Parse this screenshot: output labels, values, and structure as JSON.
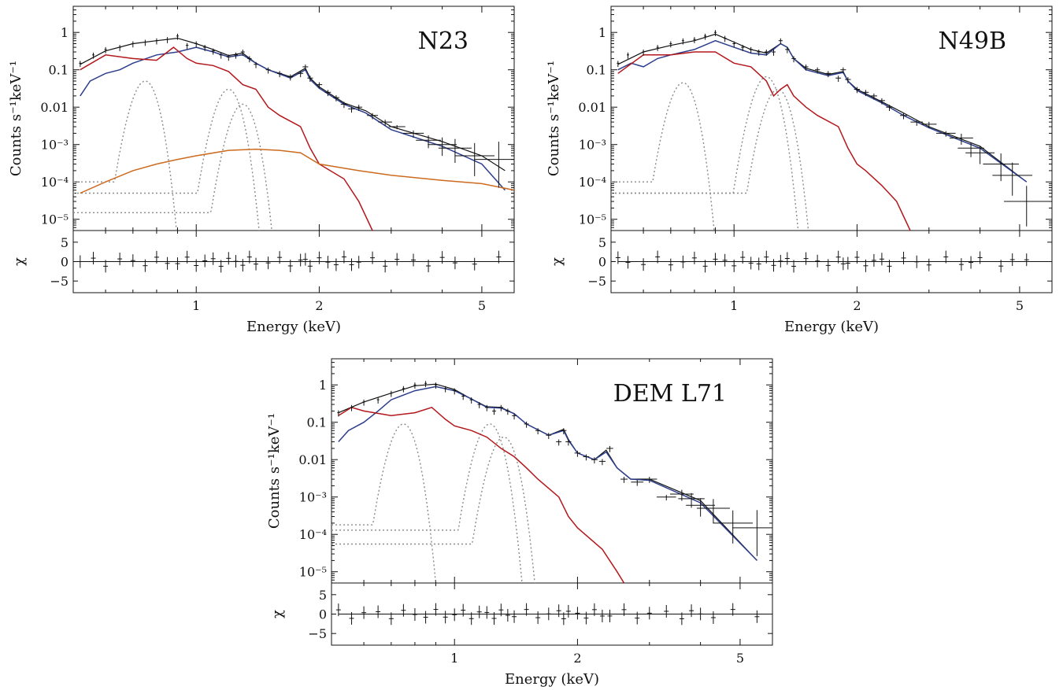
{
  "colors": {
    "data": "#111111",
    "total_model": "#111111",
    "blue_component": "#2c3e8c",
    "red_component": "#b3171b",
    "orange_component": "#cc6a1e",
    "gaussian_lines": "#8a8a8a"
  },
  "chart_data": [
    {
      "type": "line",
      "title": "N23",
      "xlabel": "Energy (keV)",
      "ylabel": "Counts s⁻¹keV⁻¹",
      "residual_label": "χ",
      "x_scale": "log",
      "y_scale": "log",
      "xlim": [
        0.5,
        6.0
      ],
      "ylim": [
        5e-06,
        5
      ],
      "x_ticks": [
        1,
        2,
        5
      ],
      "x_tick_labels": [
        "1",
        "2",
        "5"
      ],
      "y_ticks": [
        1,
        0.1,
        0.01,
        0.001,
        0.0001,
        1e-05
      ],
      "y_tick_labels": [
        "1",
        "0.1",
        "0.01",
        "10⁻³",
        "10⁻⁴",
        "10⁻⁵"
      ],
      "residual_ylim": [
        -8,
        8
      ],
      "residual_ticks": [
        5,
        0,
        -5
      ],
      "residual_tick_labels": [
        "5",
        "0",
        "−5"
      ],
      "series": [
        {
          "role": "data",
          "color": "#111111",
          "x": [
            0.52,
            0.56,
            0.6,
            0.65,
            0.7,
            0.75,
            0.8,
            0.85,
            0.9,
            0.95,
            1.0,
            1.05,
            1.1,
            1.15,
            1.2,
            1.25,
            1.3,
            1.35,
            1.4,
            1.5,
            1.6,
            1.7,
            1.8,
            1.85,
            1.9,
            2.0,
            2.1,
            2.2,
            2.3,
            2.4,
            2.5,
            2.7,
            2.9,
            3.1,
            3.4,
            3.7,
            4.0,
            4.3,
            4.8,
            5.5
          ],
          "y": [
            0.15,
            0.25,
            0.35,
            0.4,
            0.5,
            0.55,
            0.6,
            0.65,
            0.8,
            0.45,
            0.5,
            0.4,
            0.32,
            0.25,
            0.22,
            0.25,
            0.3,
            0.2,
            0.14,
            0.1,
            0.08,
            0.065,
            0.08,
            0.12,
            0.06,
            0.04,
            0.025,
            0.018,
            0.012,
            0.009,
            0.01,
            0.006,
            0.004,
            0.003,
            0.002,
            0.0013,
            0.001,
            0.0008,
            0.0005,
            0.0004
          ]
        },
        {
          "role": "total model",
          "color": "#111111",
          "x": [
            0.52,
            0.6,
            0.7,
            0.8,
            0.9,
            1.0,
            1.1,
            1.2,
            1.3,
            1.4,
            1.5,
            1.7,
            1.85,
            1.9,
            2.0,
            2.3,
            2.6,
            3.0,
            4.0,
            5.0,
            5.7
          ],
          "y": [
            0.14,
            0.32,
            0.5,
            0.6,
            0.7,
            0.5,
            0.35,
            0.24,
            0.28,
            0.15,
            0.1,
            0.065,
            0.11,
            0.06,
            0.035,
            0.013,
            0.008,
            0.003,
            0.0012,
            0.0005,
            0.0002
          ]
        },
        {
          "role": "blue component",
          "color": "#2c3e8c",
          "x": [
            0.52,
            0.55,
            0.6,
            0.65,
            0.7,
            0.8,
            0.9,
            1.0,
            1.1,
            1.2,
            1.3,
            1.4,
            1.5,
            1.7,
            1.85,
            1.9,
            2.0,
            2.3,
            2.6,
            3.0,
            4.0,
            5.0,
            5.7
          ],
          "y": [
            0.02,
            0.05,
            0.08,
            0.1,
            0.15,
            0.25,
            0.3,
            0.4,
            0.3,
            0.22,
            0.25,
            0.15,
            0.1,
            0.06,
            0.1,
            0.055,
            0.032,
            0.012,
            0.007,
            0.0025,
            0.0009,
            0.0003,
            6e-05
          ]
        },
        {
          "role": "red component",
          "color": "#b3171b",
          "x": [
            0.52,
            0.6,
            0.7,
            0.8,
            0.88,
            0.95,
            1.0,
            1.1,
            1.2,
            1.3,
            1.4,
            1.5,
            1.6,
            1.8,
            1.9,
            2.0,
            2.3,
            2.5,
            2.7
          ],
          "y": [
            0.1,
            0.25,
            0.2,
            0.18,
            0.4,
            0.2,
            0.15,
            0.13,
            0.09,
            0.04,
            0.03,
            0.01,
            0.006,
            0.003,
            0.0008,
            0.0003,
            0.00012,
            3e-05,
            5e-06
          ]
        },
        {
          "role": "orange component",
          "color": "#cc6a1e",
          "x": [
            0.52,
            0.6,
            0.7,
            0.8,
            0.9,
            1.0,
            1.2,
            1.4,
            1.6,
            1.8,
            2.0,
            2.5,
            3.0,
            4.0,
            5.0,
            6.0
          ],
          "y": [
            5e-05,
            0.0001,
            0.0002,
            0.0003,
            0.0004,
            0.0005,
            0.0007,
            0.00075,
            0.0007,
            0.0006,
            0.0003,
            0.0002,
            0.00015,
            0.00011,
            9e-05,
            6e-05
          ]
        },
        {
          "role": "gaussian line",
          "color": "#8a8a8a",
          "center": 0.75,
          "peak": 0.05,
          "floor": 0.0001
        },
        {
          "role": "gaussian line",
          "color": "#8a8a8a",
          "center": 1.2,
          "peak": 0.03,
          "floor": 5e-05
        },
        {
          "role": "gaussian line",
          "color": "#8a8a8a",
          "center": 1.3,
          "peak": 0.012,
          "floor": 1.5e-05
        }
      ]
    },
    {
      "type": "line",
      "title": "N49B",
      "xlabel": "Energy (keV)",
      "ylabel": "Counts s⁻¹keV⁻¹",
      "residual_label": "χ",
      "x_scale": "log",
      "y_scale": "log",
      "xlim": [
        0.5,
        6.0
      ],
      "ylim": [
        5e-06,
        5
      ],
      "x_ticks": [
        1,
        2,
        5
      ],
      "x_tick_labels": [
        "1",
        "2",
        "5"
      ],
      "y_ticks": [
        1,
        0.1,
        0.01,
        0.001,
        0.0001,
        1e-05
      ],
      "y_tick_labels": [
        "1",
        "0.1",
        "0.01",
        "10⁻³",
        "10⁻⁴",
        "10⁻⁵"
      ],
      "residual_ylim": [
        -8,
        8
      ],
      "residual_ticks": [
        5,
        0,
        -5
      ],
      "residual_tick_labels": [
        "5",
        "0",
        "−5"
      ],
      "series": [
        {
          "role": "data",
          "color": "#111111",
          "x": [
            0.52,
            0.55,
            0.6,
            0.65,
            0.7,
            0.75,
            0.8,
            0.85,
            0.9,
            0.95,
            1.0,
            1.05,
            1.1,
            1.15,
            1.2,
            1.25,
            1.3,
            1.35,
            1.4,
            1.5,
            1.6,
            1.7,
            1.8,
            1.85,
            1.9,
            2.0,
            2.1,
            2.2,
            2.3,
            2.4,
            2.6,
            2.8,
            3.0,
            3.3,
            3.6,
            3.8,
            4.0,
            4.5,
            4.8,
            5.2
          ],
          "y": [
            0.15,
            0.25,
            0.3,
            0.4,
            0.5,
            0.6,
            0.65,
            0.8,
            1.0,
            0.7,
            0.5,
            0.4,
            0.35,
            0.3,
            0.3,
            0.3,
            0.6,
            0.35,
            0.2,
            0.12,
            0.1,
            0.08,
            0.06,
            0.1,
            0.055,
            0.03,
            0.025,
            0.02,
            0.015,
            0.01,
            0.006,
            0.004,
            0.0035,
            0.002,
            0.0015,
            0.0008,
            0.0006,
            0.0003,
            0.00015,
            3e-05
          ]
        },
        {
          "role": "total model",
          "color": "#111111",
          "x": [
            0.52,
            0.6,
            0.7,
            0.8,
            0.9,
            1.0,
            1.1,
            1.2,
            1.3,
            1.35,
            1.4,
            1.5,
            1.7,
            1.85,
            1.9,
            2.0,
            2.3,
            2.6,
            3.0,
            4.0,
            5.2
          ],
          "y": [
            0.14,
            0.3,
            0.45,
            0.6,
            0.9,
            0.55,
            0.35,
            0.28,
            0.5,
            0.4,
            0.2,
            0.11,
            0.075,
            0.09,
            0.05,
            0.03,
            0.014,
            0.007,
            0.003,
            0.0009,
            0.0001
          ]
        },
        {
          "role": "blue component",
          "color": "#2c3e8c",
          "x": [
            0.52,
            0.56,
            0.6,
            0.65,
            0.7,
            0.8,
            0.9,
            1.0,
            1.1,
            1.2,
            1.3,
            1.35,
            1.4,
            1.5,
            1.7,
            1.85,
            1.9,
            2.0,
            2.3,
            2.6,
            3.0,
            4.0,
            5.2
          ],
          "y": [
            0.1,
            0.15,
            0.12,
            0.2,
            0.25,
            0.35,
            0.6,
            0.4,
            0.28,
            0.25,
            0.5,
            0.4,
            0.2,
            0.1,
            0.07,
            0.085,
            0.05,
            0.028,
            0.013,
            0.006,
            0.0028,
            0.0008,
            0.0001
          ]
        },
        {
          "role": "red component",
          "color": "#b3171b",
          "x": [
            0.52,
            0.6,
            0.7,
            0.8,
            0.9,
            1.0,
            1.1,
            1.2,
            1.25,
            1.3,
            1.35,
            1.4,
            1.5,
            1.6,
            1.8,
            1.9,
            2.0,
            2.1,
            2.3,
            2.5,
            2.7
          ],
          "y": [
            0.08,
            0.25,
            0.25,
            0.3,
            0.3,
            0.15,
            0.12,
            0.05,
            0.02,
            0.03,
            0.04,
            0.02,
            0.01,
            0.006,
            0.003,
            0.0008,
            0.0003,
            0.0002,
            8e-05,
            3e-05,
            5e-06
          ]
        },
        {
          "role": "gaussian line",
          "color": "#8a8a8a",
          "center": 0.75,
          "peak": 0.045,
          "floor": 0.0001
        },
        {
          "role": "gaussian line",
          "color": "#8a8a8a",
          "center": 1.2,
          "peak": 0.065,
          "floor": 5e-05
        },
        {
          "role": "gaussian line",
          "color": "#8a8a8a",
          "center": 1.28,
          "peak": 0.03,
          "floor": 5e-05
        }
      ]
    },
    {
      "type": "line",
      "title": "DEM L71",
      "xlabel": "Energy (keV)",
      "ylabel": "Counts s⁻¹keV⁻¹",
      "residual_label": "χ",
      "x_scale": "log",
      "y_scale": "log",
      "xlim": [
        0.5,
        6.0
      ],
      "ylim": [
        5e-06,
        5
      ],
      "x_ticks": [
        1,
        2,
        5
      ],
      "x_tick_labels": [
        "1",
        "2",
        "5"
      ],
      "y_ticks": [
        1,
        0.1,
        0.01,
        0.001,
        0.0001,
        1e-05
      ],
      "y_tick_labels": [
        "1",
        "0.1",
        "0.01",
        "10⁻³",
        "10⁻⁴",
        "10⁻⁵"
      ],
      "residual_ylim": [
        -8,
        8
      ],
      "residual_ticks": [
        5,
        0,
        -5
      ],
      "residual_tick_labels": [
        "5",
        "0",
        "−5"
      ],
      "series": [
        {
          "role": "data",
          "color": "#111111",
          "x": [
            0.52,
            0.56,
            0.6,
            0.65,
            0.7,
            0.75,
            0.8,
            0.85,
            0.9,
            0.95,
            1.0,
            1.05,
            1.1,
            1.15,
            1.2,
            1.25,
            1.3,
            1.35,
            1.4,
            1.5,
            1.6,
            1.7,
            1.8,
            1.85,
            1.9,
            2.0,
            2.1,
            2.2,
            2.3,
            2.4,
            2.6,
            2.8,
            3.0,
            3.3,
            3.6,
            3.8,
            4.0,
            4.3,
            4.8,
            5.5
          ],
          "y": [
            0.18,
            0.25,
            0.35,
            0.4,
            0.6,
            0.8,
            1.0,
            1.1,
            1.0,
            0.8,
            0.7,
            0.5,
            0.4,
            0.3,
            0.25,
            0.2,
            0.25,
            0.2,
            0.15,
            0.09,
            0.06,
            0.045,
            0.03,
            0.06,
            0.03,
            0.015,
            0.012,
            0.01,
            0.009,
            0.02,
            0.003,
            0.0025,
            0.003,
            0.001,
            0.0012,
            0.0009,
            0.0006,
            0.0005,
            0.0002,
            0.00015
          ]
        },
        {
          "role": "total model",
          "color": "#111111",
          "x": [
            0.52,
            0.6,
            0.7,
            0.8,
            0.9,
            1.0,
            1.1,
            1.2,
            1.3,
            1.4,
            1.5,
            1.7,
            1.85,
            1.9,
            2.0,
            2.2,
            2.35,
            2.5,
            2.7,
            3.0,
            4.0,
            5.5
          ],
          "y": [
            0.18,
            0.35,
            0.6,
            0.95,
            1.05,
            0.75,
            0.42,
            0.26,
            0.25,
            0.17,
            0.09,
            0.045,
            0.065,
            0.035,
            0.015,
            0.01,
            0.018,
            0.006,
            0.003,
            0.003,
            0.0008,
            2e-05
          ]
        },
        {
          "role": "blue component",
          "color": "#2c3e8c",
          "x": [
            0.52,
            0.55,
            0.6,
            0.65,
            0.7,
            0.8,
            0.9,
            1.0,
            1.1,
            1.2,
            1.3,
            1.4,
            1.5,
            1.7,
            1.85,
            1.9,
            2.0,
            2.2,
            2.35,
            2.5,
            2.7,
            3.0,
            4.0,
            5.5
          ],
          "y": [
            0.03,
            0.06,
            0.1,
            0.2,
            0.4,
            0.7,
            0.9,
            0.7,
            0.42,
            0.25,
            0.24,
            0.17,
            0.09,
            0.045,
            0.06,
            0.033,
            0.015,
            0.01,
            0.016,
            0.006,
            0.003,
            0.0028,
            0.0007,
            2e-05
          ]
        },
        {
          "role": "red component",
          "color": "#b3171b",
          "x": [
            0.52,
            0.56,
            0.6,
            0.7,
            0.8,
            0.88,
            0.95,
            1.0,
            1.1,
            1.2,
            1.3,
            1.4,
            1.5,
            1.6,
            1.8,
            1.9,
            2.0,
            2.3,
            2.5,
            2.6
          ],
          "y": [
            0.15,
            0.25,
            0.2,
            0.15,
            0.18,
            0.25,
            0.12,
            0.08,
            0.06,
            0.04,
            0.02,
            0.012,
            0.006,
            0.003,
            0.001,
            0.0003,
            0.00015,
            4e-05,
            1e-05,
            5e-06
          ]
        },
        {
          "role": "gaussian line",
          "color": "#8a8a8a",
          "center": 0.75,
          "peak": 0.09,
          "floor": 0.00018
        },
        {
          "role": "gaussian line",
          "color": "#8a8a8a",
          "center": 1.22,
          "peak": 0.09,
          "floor": 0.00013
        },
        {
          "role": "gaussian line",
          "color": "#8a8a8a",
          "center": 1.32,
          "peak": 0.04,
          "floor": 5.5e-05
        }
      ]
    }
  ]
}
